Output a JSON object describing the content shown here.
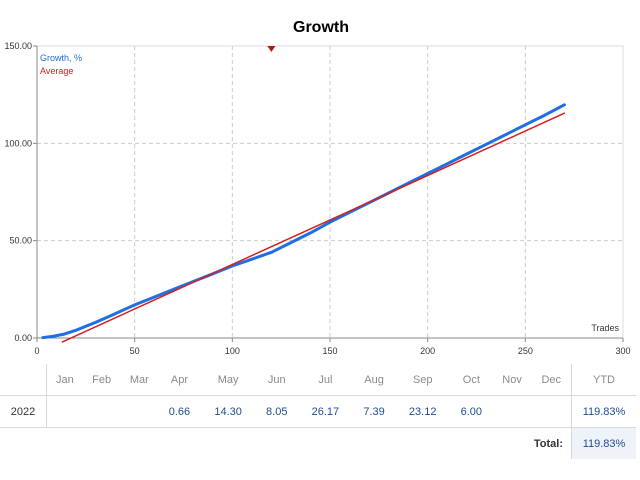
{
  "chart_data": {
    "type": "line",
    "title": "Growth",
    "xlabel": "Trades",
    "ylabel": "",
    "xlim": [
      0,
      300
    ],
    "ylim": [
      0,
      150
    ],
    "x_ticks": [
      "0",
      "50",
      "100",
      "150",
      "200",
      "250",
      "300"
    ],
    "y_ticks": [
      "0.00",
      "50.00",
      "100.00",
      "150.00"
    ],
    "grid": true,
    "legend_position": "top-left",
    "marker_x": 120,
    "series": [
      {
        "name": "Growth, %",
        "color": "#1e6fe0",
        "x": [
          3,
          8,
          14,
          20,
          30,
          40,
          50,
          60,
          70,
          80,
          90,
          100,
          110,
          120,
          130,
          140,
          150,
          160,
          170,
          180,
          190,
          200,
          210,
          220,
          230,
          240,
          250,
          260,
          270
        ],
        "y": [
          0.2,
          0.8,
          2.0,
          4.0,
          8.0,
          12.5,
          17.0,
          21.0,
          25.0,
          29.0,
          33.0,
          37.0,
          40.5,
          44.0,
          49.0,
          54.0,
          59.5,
          64.5,
          69.5,
          74.5,
          79.5,
          84.5,
          89.5,
          94.5,
          99.5,
          104.5,
          109.5,
          114.5,
          119.8
        ]
      },
      {
        "name": "Average",
        "color": "#d42020",
        "x": [
          13,
          270
        ],
        "y": [
          -2,
          115.5
        ]
      }
    ]
  },
  "table": {
    "months": [
      "Jan",
      "Feb",
      "Mar",
      "Apr",
      "May",
      "Jun",
      "Jul",
      "Aug",
      "Sep",
      "Oct",
      "Nov",
      "Dec"
    ],
    "ytd_label": "YTD",
    "year": "2022",
    "values": [
      "",
      "",
      "",
      "0.66",
      "14.30",
      "8.05",
      "26.17",
      "7.39",
      "23.12",
      "6.00",
      "",
      ""
    ],
    "ytd_value": "119.83%",
    "total_label": "Total:",
    "total_value": "119.83%"
  }
}
